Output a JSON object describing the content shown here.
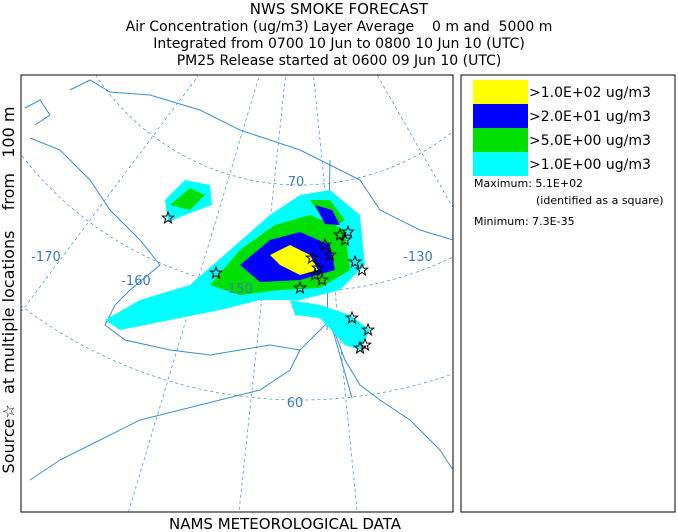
{
  "header": {
    "title": "NWS SMOKE FORECAST",
    "lines": [
      "Air Concentration (ug/m3) Layer Average    0 m and  5000 m",
      "Integrated from 0700 10 Jun to 0800 10 Jun 10 (UTC)",
      "PM25 Release started at 0600 09 Jun 10 (UTC)"
    ]
  },
  "source_label": "Source☆  at multiple locations    from   100 m",
  "footer": "NAMS METEOROLOGICAL DATA",
  "legend": {
    "items": [
      {
        "label": ">1.0E+02 ug/m3",
        "color": "#ffff00"
      },
      {
        "label": ">2.0E+01 ug/m3",
        "color": "#0000ff"
      },
      {
        "label": ">5.0E+00 ug/m3",
        "color": "#00e000"
      },
      {
        "label": ">1.0E+00 ug/m3",
        "color": "#00ffff"
      }
    ]
  },
  "stats": {
    "maximum": "Maximum: 5.1E+02",
    "maximum_note": "(identified as a square)",
    "minimum": "Minimum: 7.3E-35"
  },
  "map": {
    "labels": [
      "70",
      "-170",
      "-160",
      "-150",
      "-130",
      "60"
    ]
  }
}
